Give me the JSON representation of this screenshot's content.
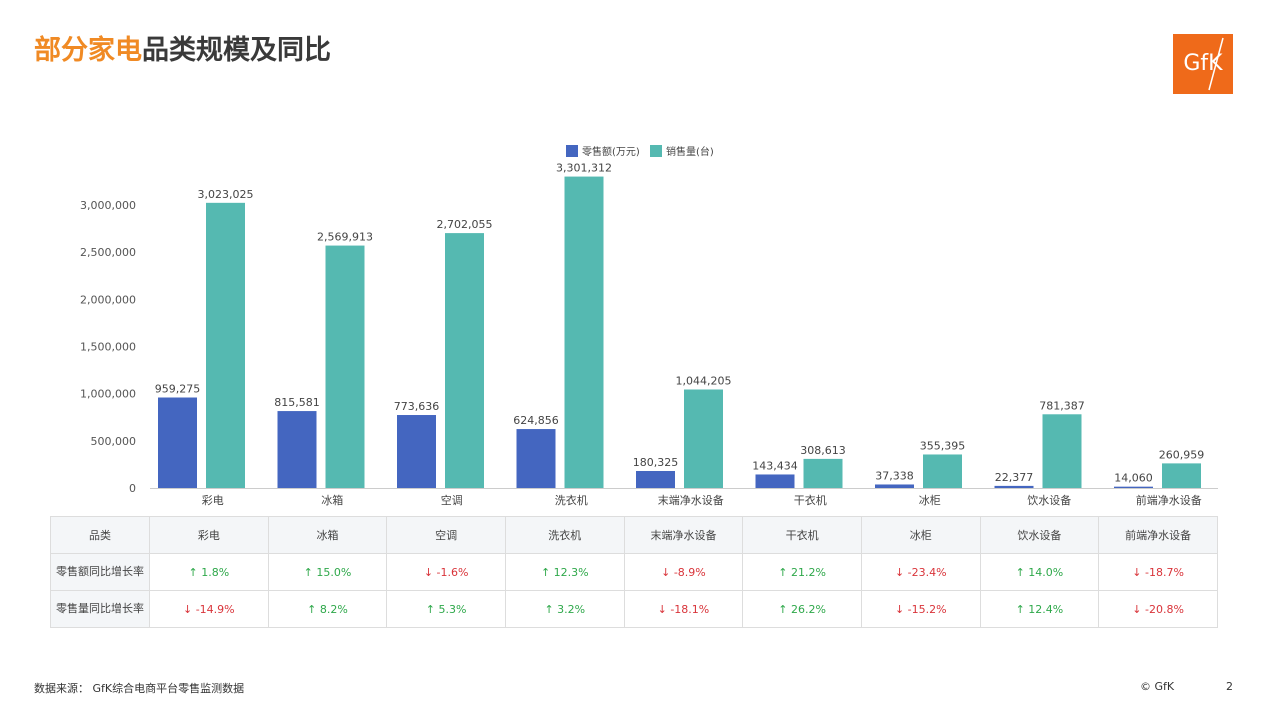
{
  "header": {
    "title_accent": "部分家电",
    "title_rest": "品类规模及同比",
    "logo_text": "GfK"
  },
  "colors": {
    "retail_value": "#4466c0",
    "sales_volume": "#55b9b1",
    "accent": "#f08a24",
    "logo_bg": "#ef6a1a",
    "up": "#2ea84a",
    "down": "#d9343a"
  },
  "chart_data": {
    "type": "bar",
    "title": "",
    "categories": [
      "彩电",
      "冰箱",
      "空调",
      "洗衣机",
      "末端净水设备",
      "干衣机",
      "冰柜",
      "饮水设备",
      "前端净水设备"
    ],
    "series": [
      {
        "name": "零售额(万元)",
        "values": [
          959275,
          815581,
          773636,
          624856,
          180325,
          143434,
          37338,
          22377,
          14060
        ],
        "labels": [
          "959,275",
          "815,581",
          "773,636",
          "624,856",
          "180,325",
          "143,434",
          "37,338",
          "22,377",
          "14,060"
        ]
      },
      {
        "name": "销售量(台)",
        "values": [
          3023025,
          2569913,
          2702055,
          3301312,
          1044205,
          308613,
          355395,
          781387,
          260959
        ],
        "labels": [
          "3,023,025",
          "2,569,913",
          "2,702,055",
          "3,301,312",
          "1,044,205",
          "308,613",
          "355,395",
          "781,387",
          "260,959"
        ]
      }
    ],
    "yticks": [
      0,
      500000,
      1000000,
      1500000,
      2000000,
      2500000,
      3000000
    ],
    "ytick_labels": [
      "0",
      "500,000",
      "1,000,000",
      "1,500,000",
      "2,000,000",
      "2,500,000",
      "3,000,000"
    ],
    "ylim": [
      0,
      3300000
    ],
    "legend_position": "top-center",
    "grid": false
  },
  "table": {
    "header_label": "品类",
    "categories": [
      "彩电",
      "冰箱",
      "空调",
      "洗衣机",
      "末端净水设备",
      "干衣机",
      "冰柜",
      "饮水设备",
      "前端净水设备"
    ],
    "rows": [
      {
        "label": "零售额同比增长率",
        "cells": [
          {
            "arrow": "↑",
            "value": "1.8%",
            "dir": "up"
          },
          {
            "arrow": "↑",
            "value": "15.0%",
            "dir": "up"
          },
          {
            "arrow": "↓",
            "value": "-1.6%",
            "dir": "down"
          },
          {
            "arrow": "↑",
            "value": "12.3%",
            "dir": "up"
          },
          {
            "arrow": "↓",
            "value": "-8.9%",
            "dir": "down"
          },
          {
            "arrow": "↑",
            "value": "21.2%",
            "dir": "up"
          },
          {
            "arrow": "↓",
            "value": "-23.4%",
            "dir": "down"
          },
          {
            "arrow": "↑",
            "value": "14.0%",
            "dir": "up"
          },
          {
            "arrow": "↓",
            "value": "-18.7%",
            "dir": "down"
          }
        ]
      },
      {
        "label": "零售量同比增长率",
        "cells": [
          {
            "arrow": "↓",
            "value": "-14.9%",
            "dir": "down"
          },
          {
            "arrow": "↑",
            "value": "8.2%",
            "dir": "up"
          },
          {
            "arrow": "↑",
            "value": "5.3%",
            "dir": "up"
          },
          {
            "arrow": "↑",
            "value": "3.2%",
            "dir": "up"
          },
          {
            "arrow": "↓",
            "value": "-18.1%",
            "dir": "down"
          },
          {
            "arrow": "↑",
            "value": "26.2%",
            "dir": "up"
          },
          {
            "arrow": "↓",
            "value": "-15.2%",
            "dir": "down"
          },
          {
            "arrow": "↑",
            "value": "12.4%",
            "dir": "up"
          },
          {
            "arrow": "↓",
            "value": "-20.8%",
            "dir": "down"
          }
        ]
      }
    ]
  },
  "footer": {
    "source": "数据来源： GfK综合电商平台零售监测数据",
    "copyright": "© GfK",
    "page_number": "2"
  }
}
